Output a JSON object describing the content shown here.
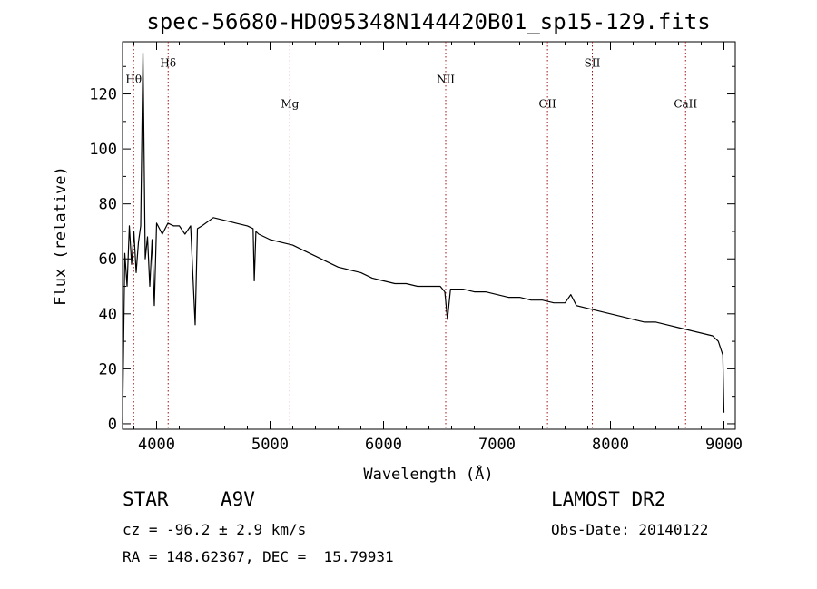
{
  "chart_data": {
    "type": "line",
    "title": "spec-56680-HD095348N144420B01_sp15-129.fits",
    "xlabel": "Wavelength (Å)",
    "ylabel": "Flux (relative)",
    "xlim": [
      3700,
      9100
    ],
    "ylim": [
      -2,
      139
    ],
    "x_ticks": [
      4000,
      5000,
      6000,
      7000,
      8000,
      9000
    ],
    "y_ticks": [
      0,
      20,
      40,
      60,
      80,
      100,
      120
    ],
    "spectrum": {
      "x": [
        3700,
        3720,
        3740,
        3760,
        3780,
        3800,
        3820,
        3840,
        3860,
        3880,
        3900,
        3920,
        3940,
        3960,
        3980,
        4000,
        4050,
        4100,
        4150,
        4200,
        4250,
        4300,
        4340,
        4360,
        4400,
        4500,
        4600,
        4700,
        4800,
        4850,
        4861,
        4875,
        4900,
        5000,
        5100,
        5200,
        5300,
        5400,
        5500,
        5600,
        5700,
        5800,
        5900,
        6000,
        6100,
        6200,
        6300,
        6400,
        6500,
        6540,
        6563,
        6590,
        6700,
        6800,
        6900,
        7000,
        7100,
        7200,
        7300,
        7400,
        7500,
        7600,
        7650,
        7700,
        7800,
        7900,
        8000,
        8100,
        8200,
        8300,
        8400,
        8500,
        8600,
        8700,
        8800,
        8900,
        8950,
        8990,
        9000
      ],
      "y": [
        0,
        62,
        50,
        72,
        58,
        70,
        55,
        66,
        72,
        135,
        60,
        68,
        50,
        67,
        43,
        73,
        69,
        73,
        72,
        72,
        69,
        72,
        36,
        71,
        72,
        75,
        74,
        73,
        72,
        71,
        52,
        70,
        69,
        67,
        66,
        65,
        63,
        61,
        59,
        57,
        56,
        55,
        53,
        52,
        51,
        51,
        50,
        50,
        50,
        48,
        38,
        49,
        49,
        48,
        48,
        47,
        46,
        46,
        45,
        45,
        44,
        44,
        47,
        43,
        42,
        41,
        40,
        39,
        38,
        37,
        37,
        36,
        35,
        34,
        33,
        32,
        30,
        25,
        4
      ]
    },
    "spectral_lines": [
      {
        "label": "Hθ",
        "x": 3798,
        "label_y": 124
      },
      {
        "label": "Hδ",
        "x": 4102,
        "label_y": 130
      },
      {
        "label": "Mg",
        "x": 5175,
        "label_y": 115
      },
      {
        "label": "NII",
        "x": 6548,
        "label_y": 124
      },
      {
        "label": "OII",
        "x": 7445,
        "label_y": 115
      },
      {
        "label": "SII",
        "x": 7840,
        "label_y": 130
      },
      {
        "label": "CaII",
        "x": 8662,
        "label_y": 115
      }
    ],
    "line_color": "#000000",
    "marker_color": "#a01010",
    "grid": false,
    "legend": "none"
  },
  "info": {
    "class": "STAR",
    "subclass": "A9V",
    "survey": "LAMOST DR2",
    "cz": "cz = -96.2 ± 2.9 km/s",
    "obs_date": "Obs-Date: 20140122",
    "coords": "RA = 148.62367, DEC =  15.79931"
  }
}
